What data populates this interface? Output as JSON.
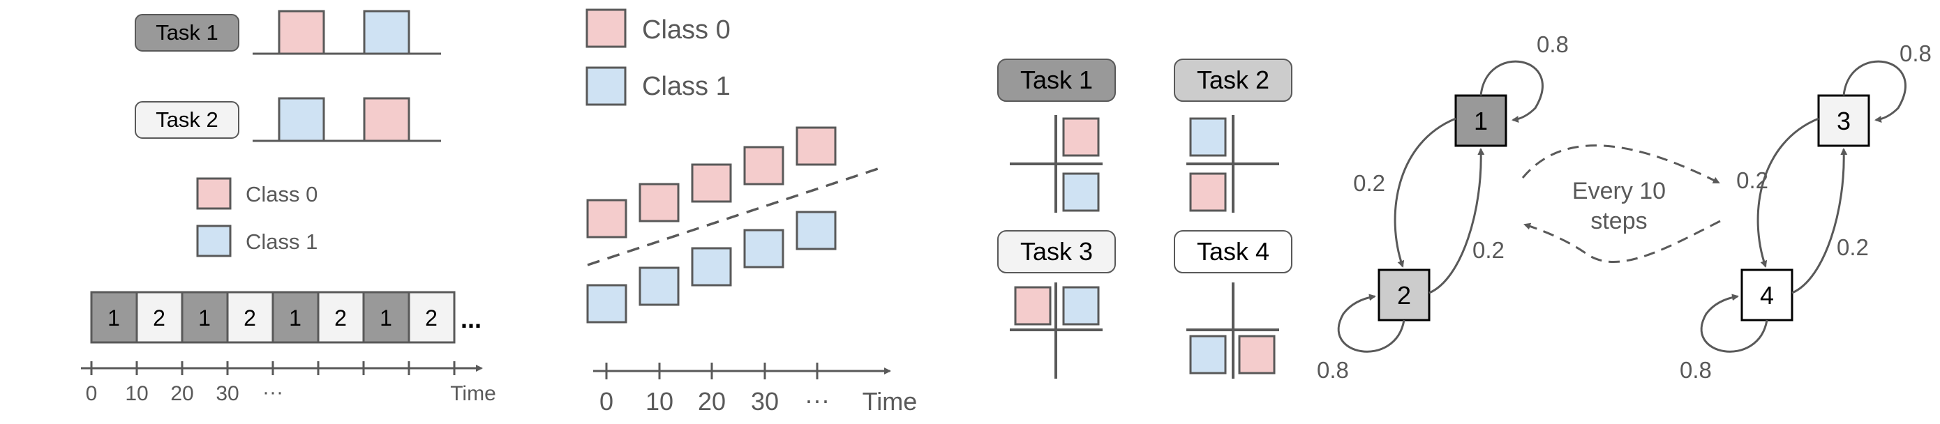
{
  "colors": {
    "class0": "#f4cccc",
    "class1": "#cfe2f3",
    "edge": "#595959",
    "dark": "#999999",
    "mid": "#cccccc",
    "light": "#f3f3f3",
    "white": "#ffffff",
    "text": "#000000",
    "label": "#595959"
  },
  "panel_a": {
    "task1_label": "Task 1",
    "task2_label": "Task 2",
    "legend_class0": "Class 0",
    "legend_class1": "Class 1",
    "sequence": [
      "1",
      "2",
      "1",
      "2",
      "1",
      "2",
      "1",
      "2"
    ],
    "ellipsis": "...",
    "ticks": [
      "0",
      "10",
      "20",
      "30",
      "···"
    ],
    "axis_label": "Time"
  },
  "panel_b": {
    "legend_class0": "Class 0",
    "legend_class1": "Class 1",
    "ticks": [
      "0",
      "10",
      "20",
      "30",
      "···"
    ],
    "axis_label": "Time"
  },
  "panel_c": {
    "task1_label": "Task 1",
    "task2_label": "Task 2",
    "task3_label": "Task 3",
    "task4_label": "Task 4"
  },
  "panel_d": {
    "node1": "1",
    "node2": "2",
    "node3": "3",
    "node4": "4",
    "p_self_1": "0.8",
    "p_self_2": "0.8",
    "p_self_3": "0.8",
    "p_self_4": "0.8",
    "p_1_to_2": "0.2",
    "p_2_to_1": "0.2",
    "p_3_to_4": "0.2",
    "p_4_to_3": "0.2",
    "switch_line1": "Every 10",
    "switch_line2": "steps"
  }
}
